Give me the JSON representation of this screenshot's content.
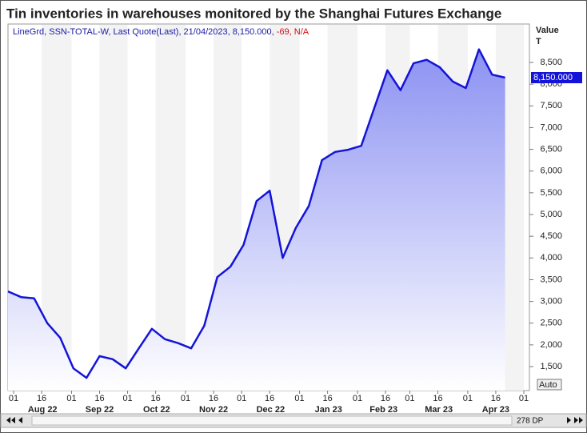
{
  "chart_data": {
    "type": "line",
    "title": "Tin inventories in warehouses monitored by the Shanghai Futures Exchange",
    "header_info": "LineGrd, SSN-TOTAL-W, Last Quote(Last), 21/04/2023, 8,150.000,",
    "header_change": "-69, N/A",
    "y_axis_title": "Value",
    "y_axis_unit": "T",
    "last_value_label": "8,150.000",
    "auto_button": "Auto",
    "points_label": "278 DP",
    "x": [
      "2022-07-29",
      "2022-08-05",
      "2022-08-12",
      "2022-08-19",
      "2022-08-26",
      "2022-09-02",
      "2022-09-09",
      "2022-09-16",
      "2022-09-23",
      "2022-09-30",
      "2022-10-07",
      "2022-10-14",
      "2022-10-21",
      "2022-10-28",
      "2022-11-04",
      "2022-11-11",
      "2022-11-18",
      "2022-11-25",
      "2022-12-02",
      "2022-12-09",
      "2022-12-16",
      "2022-12-23",
      "2022-12-30",
      "2023-01-06",
      "2023-01-13",
      "2023-01-20",
      "2023-01-27",
      "2023-02-03",
      "2023-02-10",
      "2023-02-17",
      "2023-02-24",
      "2023-03-03",
      "2023-03-10",
      "2023-03-17",
      "2023-03-24",
      "2023-03-31",
      "2023-04-07",
      "2023-04-14",
      "2023-04-21"
    ],
    "series": [
      {
        "name": "SSN-TOTAL-W",
        "color": "#1414d8",
        "values": [
          3230,
          3100,
          3070,
          2500,
          2160,
          1460,
          1240,
          1740,
          1670,
          1460,
          1920,
          2370,
          2130,
          2040,
          1920,
          2440,
          3560,
          3800,
          4300,
          5310,
          5550,
          4000,
          4690,
          5200,
          6250,
          6440,
          6490,
          6580,
          7450,
          8320,
          7860,
          8480,
          8560,
          8390,
          8060,
          7910,
          8800,
          8220,
          8150
        ]
      }
    ],
    "xlim": [
      "2022-07-29",
      "2023-05-04"
    ],
    "xticks": [
      {
        "value": "2022-08-01",
        "label": "01"
      },
      {
        "value": "2022-08-16",
        "label": "16"
      },
      {
        "value": "2022-09-01",
        "label": "01"
      },
      {
        "value": "2022-09-16",
        "label": "16"
      },
      {
        "value": "2022-10-01",
        "label": "01"
      },
      {
        "value": "2022-10-16",
        "label": "16"
      },
      {
        "value": "2022-11-01",
        "label": "01"
      },
      {
        "value": "2022-11-16",
        "label": "16"
      },
      {
        "value": "2022-12-01",
        "label": "01"
      },
      {
        "value": "2022-12-16",
        "label": "16"
      },
      {
        "value": "2023-01-01",
        "label": "01"
      },
      {
        "value": "2023-01-16",
        "label": "16"
      },
      {
        "value": "2023-02-01",
        "label": "01"
      },
      {
        "value": "2023-02-16",
        "label": "16"
      },
      {
        "value": "2023-03-01",
        "label": "01"
      },
      {
        "value": "2023-03-16",
        "label": "16"
      },
      {
        "value": "2023-04-01",
        "label": "01"
      },
      {
        "value": "2023-04-16",
        "label": "16"
      },
      {
        "value": "2023-05-01",
        "label": "01"
      }
    ],
    "month_labels": [
      {
        "value": "2022-08",
        "label": "Aug 22"
      },
      {
        "value": "2022-09",
        "label": "Sep 22"
      },
      {
        "value": "2022-10",
        "label": "Oct 22"
      },
      {
        "value": "2022-11",
        "label": "Nov 22"
      },
      {
        "value": "2022-12",
        "label": "Dec 22"
      },
      {
        "value": "2023-01",
        "label": "Jan 23"
      },
      {
        "value": "2023-02",
        "label": "Feb 23"
      },
      {
        "value": "2023-03",
        "label": "Mar 23"
      },
      {
        "value": "2023-04",
        "label": "Apr 23"
      }
    ],
    "ylim": [
      948,
      9384
    ],
    "yticks": [
      {
        "value": 1500,
        "label": "1,500"
      },
      {
        "value": 2000,
        "label": "2,000"
      },
      {
        "value": 2500,
        "label": "2,500"
      },
      {
        "value": 3000,
        "label": "3,000"
      },
      {
        "value": 3500,
        "label": "3,500"
      },
      {
        "value": 4000,
        "label": "4,000"
      },
      {
        "value": 4500,
        "label": "4,500"
      },
      {
        "value": 5000,
        "label": "5,000"
      },
      {
        "value": 5500,
        "label": "5,500"
      },
      {
        "value": 6000,
        "label": "6,000"
      },
      {
        "value": 6500,
        "label": "6,500"
      },
      {
        "value": 7000,
        "label": "7,000"
      },
      {
        "value": 7500,
        "label": "7,500"
      },
      {
        "value": 8000,
        "label": "8,000"
      },
      {
        "value": 8500,
        "label": "8,500"
      }
    ],
    "grid": false
  }
}
